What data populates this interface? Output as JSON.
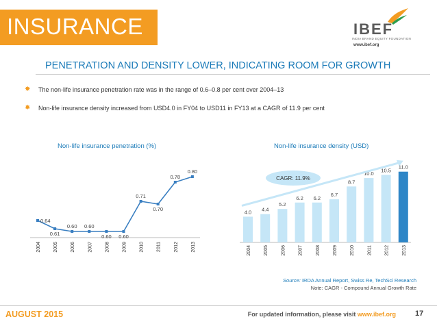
{
  "header": {
    "title": "INSURANCE",
    "logo": {
      "name": "IBEF",
      "tagline": "INDIA BRAND EQUITY FOUNDATION",
      "url": "www.ibef.org"
    }
  },
  "subtitle": "PENETRATION AND DENSITY LOWER, INDICATING ROOM FOR GROWTH",
  "bullets": [
    "The non-life insurance penetration rate was in the range of 0.6–0.8 per cent over 2004–13",
    "Non-life insurance density increased from USD4.0 in FY04 to USD11 in FY13 at a CAGR of 11.9 per cent"
  ],
  "colors": {
    "accent": "#f39c22",
    "blue": "#1a7ab8",
    "line": "#3a7fc1",
    "bar_light": "#c5e6f7",
    "bar_dark": "#2e86c7"
  },
  "chart_data": [
    {
      "type": "line",
      "title": "Non-life insurance penetration (%)",
      "categories": [
        "2004",
        "2005",
        "2006",
        "2007",
        "2008",
        "2009",
        "2010",
        "2011",
        "2012",
        "2013"
      ],
      "values": [
        0.64,
        0.61,
        0.6,
        0.6,
        0.6,
        0.6,
        0.71,
        0.7,
        0.78,
        0.8
      ],
      "data_labels": [
        "0.64",
        "0.61",
        "0.60",
        "0.60",
        "0.60",
        "0.60",
        "0.71",
        "0.70",
        "0.78",
        "0.80"
      ],
      "ylim": [
        0.58,
        0.82
      ],
      "grid": false
    },
    {
      "type": "bar",
      "title": "Non-life insurance density (USD)",
      "categories": [
        "2004",
        "2005",
        "2006",
        "2007",
        "2008",
        "2009",
        "2010",
        "2011",
        "2012",
        "2013"
      ],
      "values": [
        4.0,
        4.4,
        5.2,
        6.2,
        6.2,
        6.7,
        8.7,
        10.0,
        10.5,
        11.0
      ],
      "data_labels": [
        "4.0",
        "4.4",
        "5.2",
        "6.2",
        "6.2",
        "6.7",
        "8.7",
        "10.0",
        "10.5",
        "11.0"
      ],
      "ylim": [
        0,
        11.5
      ],
      "highlight_index": 9,
      "annotation": "CAGR: 11.9%",
      "grid": false
    }
  ],
  "source": {
    "label": "Source:",
    "text": " IRDA Annual Report, Swiss Re, TechSci Research",
    "note": "Note: CAGR - Compound Annual Growth Rate"
  },
  "footer": {
    "date": "AUGUST 2015",
    "info_prefix": "For updated information, please visit ",
    "info_url": "www.ibef.org",
    "page": "17"
  }
}
